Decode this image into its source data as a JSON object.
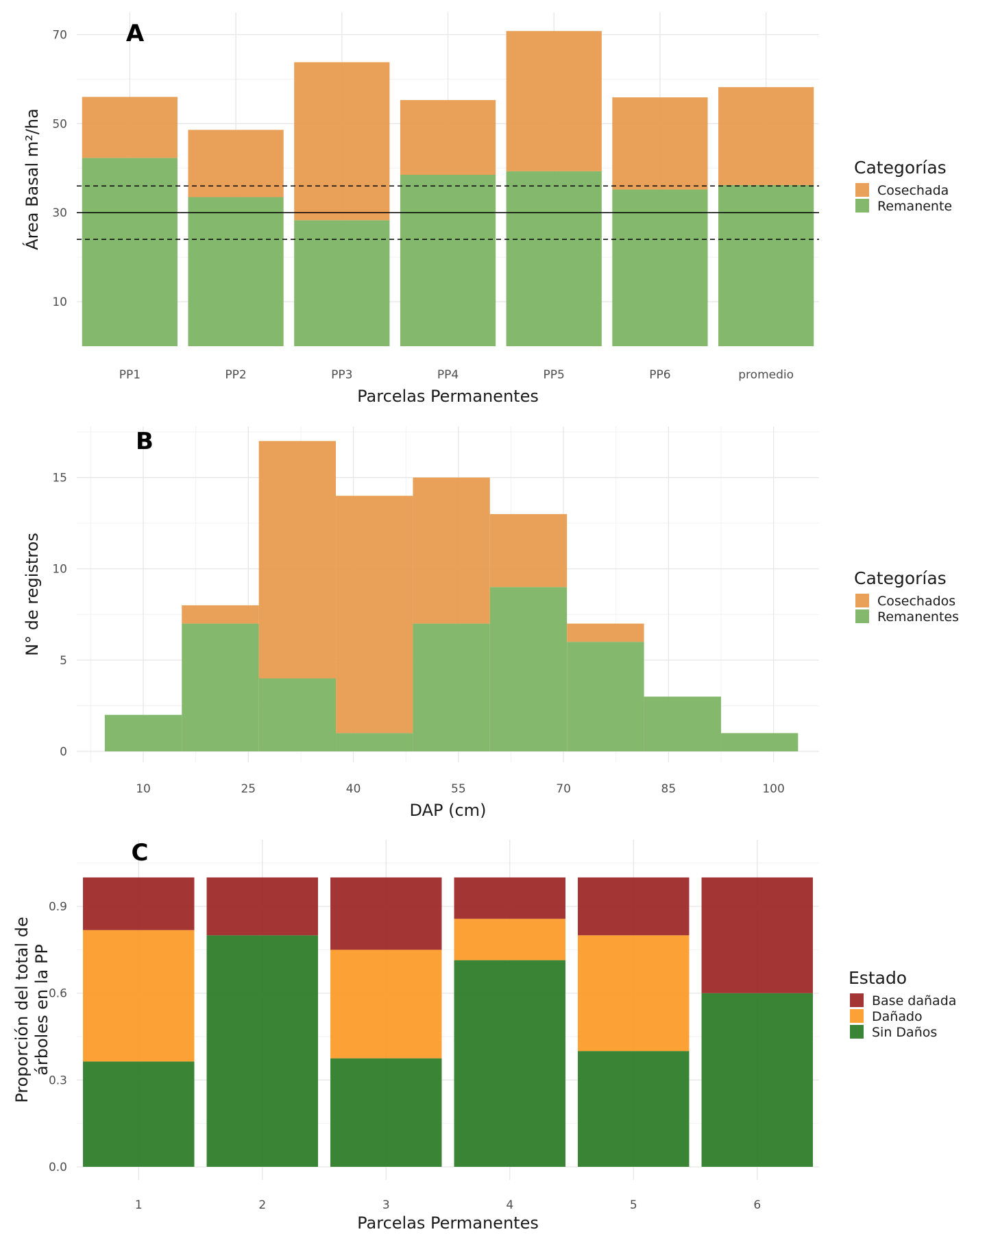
{
  "chart_data": [
    {
      "panel": "A",
      "type": "bar",
      "stacked": true,
      "xlabel": "Parcelas Permanentes",
      "ylabel": "Área Basal m²/ha",
      "categories": [
        "PP1",
        "PP2",
        "PP3",
        "PP4",
        "PP5",
        "PP6",
        "promedio"
      ],
      "series": [
        {
          "name": "Remanente",
          "color": "#7db465",
          "values": [
            42.3,
            33.5,
            28.3,
            38.5,
            39.3,
            35.2,
            36.2
          ]
        },
        {
          "name": "Cosechada",
          "color": "#e89c50",
          "values": [
            13.7,
            15.1,
            35.5,
            16.8,
            31.5,
            20.7,
            22.0
          ]
        }
      ],
      "yticks": [
        10,
        30,
        50,
        70
      ],
      "ylim": [
        0,
        75
      ],
      "reference_lines": [
        {
          "y": 30,
          "style": "solid"
        },
        {
          "y": 36,
          "style": "dashed"
        },
        {
          "y": 24,
          "style": "dashed"
        }
      ],
      "legend_title": "Categorías",
      "legend_order": [
        "Cosechada",
        "Remanente"
      ],
      "grid": true
    },
    {
      "panel": "B",
      "type": "bar",
      "stacked": true,
      "subtype": "histogram",
      "xlabel": "DAP (cm)",
      "ylabel": "N° de registros",
      "bin_centers": [
        10,
        21,
        32,
        43,
        54,
        65,
        76,
        87,
        98
      ],
      "bin_width": 11,
      "series": [
        {
          "name": "Remanentes",
          "color": "#7db465",
          "values": [
            2,
            7,
            4,
            1,
            7,
            9,
            6,
            3,
            1
          ]
        },
        {
          "name": "Cosechados",
          "color": "#e89c50",
          "values": [
            0,
            1,
            13,
            13,
            8,
            4,
            1,
            0,
            0
          ]
        }
      ],
      "xticks": [
        10,
        25,
        40,
        55,
        70,
        85,
        100
      ],
      "xlim": [
        0.5,
        106.5
      ],
      "yticks": [
        0,
        5,
        10,
        15
      ],
      "ylim": [
        -0.6,
        17.8
      ],
      "legend_title": "Categorías",
      "legend_order": [
        "Cosechados",
        "Remanentes"
      ],
      "grid": true
    },
    {
      "panel": "C",
      "type": "bar",
      "stacked": true,
      "xlabel": "Parcelas Permanentes",
      "ylabel_lines": [
        "Proporción del total de",
        "árboles en la PP"
      ],
      "categories": [
        "1",
        "2",
        "3",
        "4",
        "5",
        "6"
      ],
      "series": [
        {
          "name": "Sin Daños",
          "color": "#2e7d2a",
          "values": [
            0.364,
            0.8,
            0.375,
            0.714,
            0.4,
            0.6
          ]
        },
        {
          "name": "Dañado",
          "color": "#fb9c2b",
          "values": [
            0.454,
            0.0,
            0.375,
            0.143,
            0.4,
            0.0
          ]
        },
        {
          "name": "Base dañada",
          "color": "#9e2a2a",
          "values": [
            0.182,
            0.2,
            0.25,
            0.143,
            0.2,
            0.4
          ]
        }
      ],
      "yticks": [
        0.0,
        0.3,
        0.6,
        0.9
      ],
      "ytick_labels": [
        "0.0",
        "0.3",
        "0.6",
        "0.9"
      ],
      "ylim": [
        -0.045,
        1.13
      ],
      "legend_title": "Estado",
      "legend_order": [
        "Base dañada",
        "Dañado",
        "Sin Daños"
      ],
      "grid": true
    }
  ]
}
